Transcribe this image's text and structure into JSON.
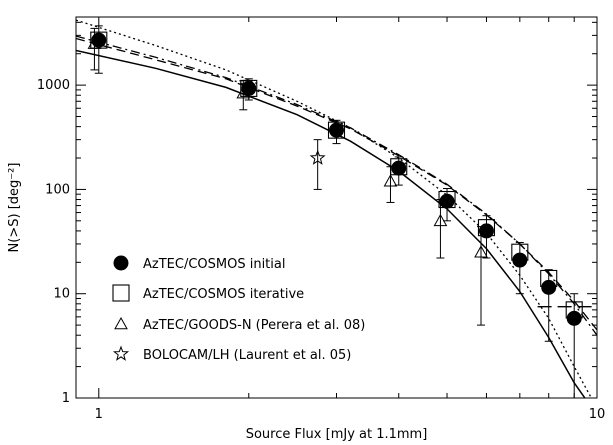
{
  "chart_data": {
    "type": "scatter",
    "xscale": "log",
    "yscale": "log",
    "xlim": [
      0.9,
      10
    ],
    "ylim": [
      1,
      4500
    ],
    "xlabel": "Source Flux [mJy at 1.1mm]",
    "ylabel": "N(>S) [deg⁻²]",
    "x_ticks": [
      {
        "value": 1,
        "label": "1"
      },
      {
        "value": 10,
        "label": "10"
      }
    ],
    "y_ticks": [
      {
        "value": 1,
        "label": "1"
      },
      {
        "value": 10,
        "label": "10"
      },
      {
        "value": 100,
        "label": "100"
      },
      {
        "value": 1000,
        "label": "1000"
      }
    ],
    "grid": false,
    "legend_position": "bottom-left",
    "series": [
      {
        "name": "AzTEC/COSMOS initial",
        "marker": "filled-circle",
        "points": [
          {
            "x": 1.0,
            "y": 2700,
            "ylo": 1300,
            "yhi": 3700
          },
          {
            "x": 2.0,
            "y": 930,
            "ylo": 720,
            "yhi": 1150
          },
          {
            "x": 3.0,
            "y": 370,
            "ylo": 275,
            "yhi": 460
          },
          {
            "x": 4.0,
            "y": 160,
            "ylo": 110,
            "yhi": 205
          },
          {
            "x": 5.0,
            "y": 77,
            "ylo": 50,
            "yhi": 102
          },
          {
            "x": 6.0,
            "y": 40,
            "ylo": 22,
            "yhi": 56
          },
          {
            "x": 7.0,
            "y": 21,
            "ylo": 10,
            "yhi": 31
          },
          {
            "x": 8.0,
            "y": 11.5,
            "ylo": 3.5,
            "yhi": 17
          },
          {
            "x": 9.0,
            "y": 5.8,
            "ylo": 1.0,
            "yhi": 10
          }
        ]
      },
      {
        "name": "AzTEC/COSMOS iterative",
        "marker": "open-square",
        "points": [
          {
            "x": 1.0,
            "y": 2700
          },
          {
            "x": 2.0,
            "y": 930
          },
          {
            "x": 3.0,
            "y": 370
          },
          {
            "x": 4.0,
            "y": 165
          },
          {
            "x": 5.0,
            "y": 80
          },
          {
            "x": 6.0,
            "y": 43
          },
          {
            "x": 7.0,
            "y": 25
          },
          {
            "x": 8.0,
            "y": 14
          },
          {
            "x": 9.0,
            "y": 7
          }
        ]
      },
      {
        "name": "AzTEC/GOODS-N (Perera et al. 08)",
        "marker": "open-triangle",
        "points": [
          {
            "x": 0.98,
            "y": 2500,
            "ylo": 1400,
            "yhi": 3500
          },
          {
            "x": 1.95,
            "y": 840,
            "ylo": 580,
            "yhi": 1100
          },
          {
            "x": 3.85,
            "y": 120,
            "ylo": 75,
            "yhi": 165
          },
          {
            "x": 4.85,
            "y": 50,
            "ylo": 22,
            "yhi": 80
          },
          {
            "x": 5.85,
            "y": 25,
            "ylo": 5,
            "yhi": 44
          }
        ]
      },
      {
        "name": "BOLOCAM/LH (Laurent et al. 05)",
        "marker": "open-star",
        "points": [
          {
            "x": 2.75,
            "y": 200,
            "ylo": 100,
            "yhi": 300
          }
        ]
      }
    ],
    "curves": [
      {
        "style": "solid",
        "x": [
          0.9,
          1.3,
          1.8,
          2.5,
          3.2,
          4.0,
          5.0,
          6.0,
          7.0,
          8.0,
          9.0,
          9.6
        ],
        "y": [
          2150,
          1450,
          950,
          520,
          290,
          150,
          65,
          27,
          10.5,
          3.8,
          1.4,
          0.9
        ]
      },
      {
        "style": "dashed",
        "x": [
          0.9,
          1.3,
          1.8,
          2.5,
          3.2,
          4.0,
          5.0,
          6.0,
          7.0,
          8.0,
          9.0,
          10.0
        ],
        "y": [
          2800,
          1750,
          1150,
          630,
          380,
          210,
          110,
          57,
          30,
          16,
          8.5,
          4.5
        ]
      },
      {
        "style": "dashdot",
        "x": [
          0.9,
          1.3,
          1.8,
          2.5,
          3.2,
          4.0,
          5.0,
          6.0,
          7.0,
          8.0,
          9.0,
          10.0
        ],
        "y": [
          2950,
          1850,
          1180,
          650,
          390,
          215,
          112,
          58,
          30,
          15.5,
          8,
          4
        ]
      },
      {
        "style": "dotted",
        "x": [
          0.9,
          1.3,
          1.8,
          2.5,
          3.2,
          4.0,
          5.0,
          6.0,
          7.0,
          8.0,
          9.0,
          9.8
        ],
        "y": [
          4200,
          2400,
          1400,
          700,
          390,
          200,
          88,
          38,
          15,
          5.8,
          2.0,
          0.95
        ]
      },
      {
        "style": "longdash",
        "x": [
          7.6,
          10.0
        ],
        "y": [
          7.5,
          7.5
        ]
      }
    ]
  }
}
